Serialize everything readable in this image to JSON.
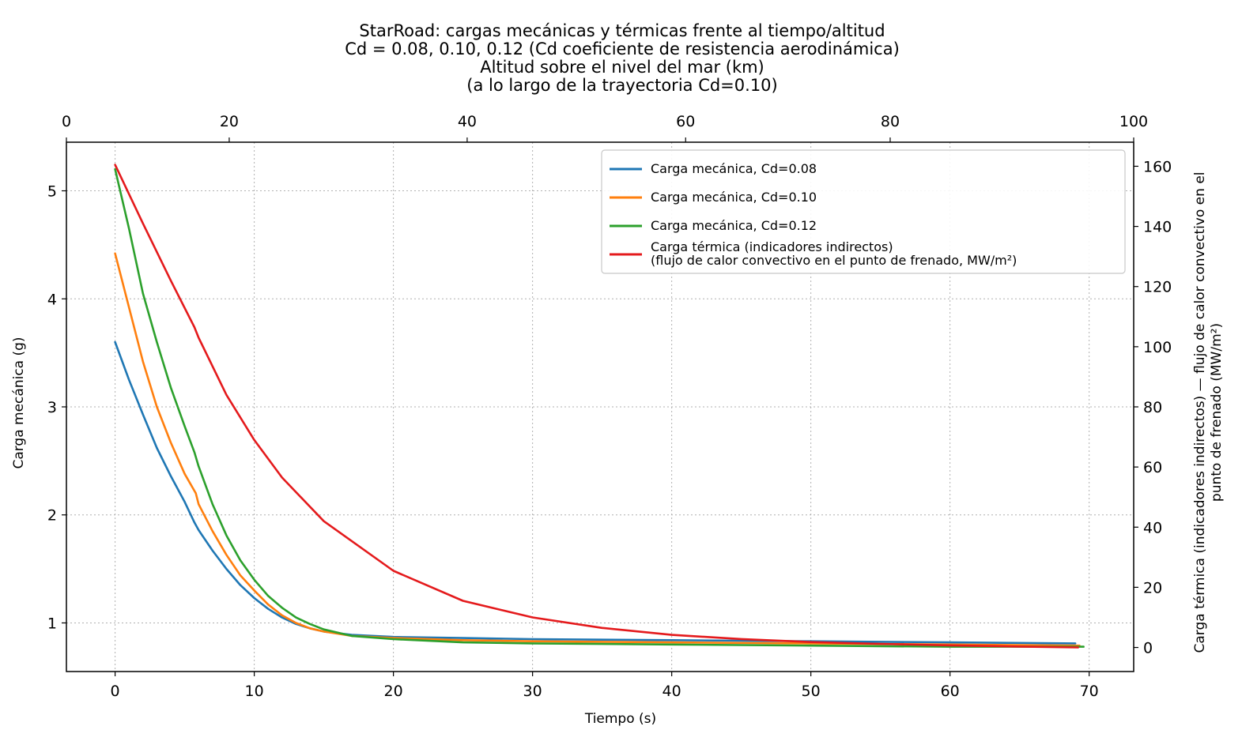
{
  "chart_data": {
    "type": "line",
    "title_lines": [
      "StarRoad: cargas mecánicas y térmicas frente al tiempo/altitud",
      "Cd = 0.08, 0.10, 0.12 (Cd coeficiente de resistencia aerodinámica)",
      "Altitud sobre el nivel del mar (km)",
      "(a lo largo de la trayectoria Cd=0.10)"
    ],
    "xlabel": "Tiempo (s)",
    "ylabel": "Carga mecánica (g)",
    "y2label_lines": [
      "Carga térmica (indicadores indirectos) — flujo de calor convectivo en el",
      "punto de frenado (MW/m²)"
    ],
    "xlim": [
      -3.5,
      73.2
    ],
    "ylim": [
      0.55,
      5.45
    ],
    "y2lim": [
      -8,
      168
    ],
    "x2lim": [
      0,
      100
    ],
    "x_ticks": [
      0,
      10,
      20,
      30,
      40,
      50,
      60,
      70
    ],
    "y_ticks": [
      1,
      2,
      3,
      4,
      5
    ],
    "y2_ticks": [
      0,
      20,
      40,
      60,
      80,
      100,
      120,
      140,
      160
    ],
    "x2_ticks": [
      0,
      20,
      40,
      60,
      80,
      100
    ],
    "x2_tick_time": [
      -3.5,
      8.2,
      25.3,
      41.0,
      55.7,
      73.2
    ],
    "grid": true,
    "legend_position": "top-right",
    "series": [
      {
        "name": "Carga mecánica, Cd=0.08",
        "axis": "left",
        "color": "#1f77b4",
        "x": [
          0,
          1,
          2,
          3,
          4,
          5,
          5.7,
          6,
          7,
          8,
          9,
          10,
          11,
          12,
          13,
          14,
          15,
          17,
          20,
          25,
          30,
          40,
          50,
          60,
          69
        ],
        "y": [
          3.6,
          3.25,
          2.93,
          2.62,
          2.36,
          2.12,
          1.93,
          1.86,
          1.67,
          1.5,
          1.35,
          1.23,
          1.13,
          1.05,
          0.99,
          0.95,
          0.92,
          0.89,
          0.87,
          0.86,
          0.85,
          0.84,
          0.83,
          0.82,
          0.81
        ]
      },
      {
        "name": "Carga mecánica, Cd=0.10",
        "axis": "left",
        "color": "#ff7f0e",
        "x": [
          0,
          1,
          2,
          3,
          4,
          5,
          5.8,
          6,
          7,
          8,
          9,
          10,
          11,
          12,
          13,
          14,
          15,
          17,
          20,
          25,
          30,
          40,
          50,
          60,
          69.3
        ],
        "y": [
          4.42,
          3.92,
          3.42,
          3.0,
          2.67,
          2.38,
          2.2,
          2.1,
          1.85,
          1.63,
          1.44,
          1.3,
          1.17,
          1.07,
          1.0,
          0.95,
          0.92,
          0.88,
          0.86,
          0.84,
          0.83,
          0.82,
          0.81,
          0.8,
          0.79
        ]
      },
      {
        "name": "Carga mecánica, Cd=0.12",
        "axis": "left",
        "color": "#2ca02c",
        "x": [
          0,
          1,
          2,
          3,
          4,
          5,
          5.7,
          6,
          7,
          8,
          9,
          10,
          11,
          12,
          13,
          14,
          15,
          17,
          20,
          25,
          30,
          40,
          50,
          60,
          69.6
        ],
        "y": [
          5.2,
          4.65,
          4.05,
          3.6,
          3.18,
          2.82,
          2.58,
          2.45,
          2.1,
          1.81,
          1.58,
          1.4,
          1.25,
          1.14,
          1.05,
          0.99,
          0.94,
          0.88,
          0.85,
          0.82,
          0.81,
          0.8,
          0.79,
          0.78,
          0.78
        ]
      },
      {
        "name": "Carga térmica (indicadores indirectos)\n(flujo de calor convectivo en el punto de frenado, MW/m²)",
        "legend_lines": [
          "Carga térmica (indicadores indirectos)",
          "(flujo de calor convectivo en el punto de frenado, MW/m²)"
        ],
        "axis": "right",
        "color": "#e41a1c",
        "x": [
          0,
          2,
          4,
          5.7,
          6,
          8,
          10,
          12,
          15,
          20,
          25,
          30,
          35,
          40,
          45,
          50,
          55,
          60,
          65,
          69.2
        ],
        "y": [
          160.5,
          141,
          122,
          106.5,
          103,
          84,
          69,
          56.5,
          42,
          25.5,
          15.5,
          10,
          6.5,
          4.2,
          2.8,
          1.8,
          1.2,
          0.7,
          0.3,
          0.0
        ]
      }
    ]
  }
}
